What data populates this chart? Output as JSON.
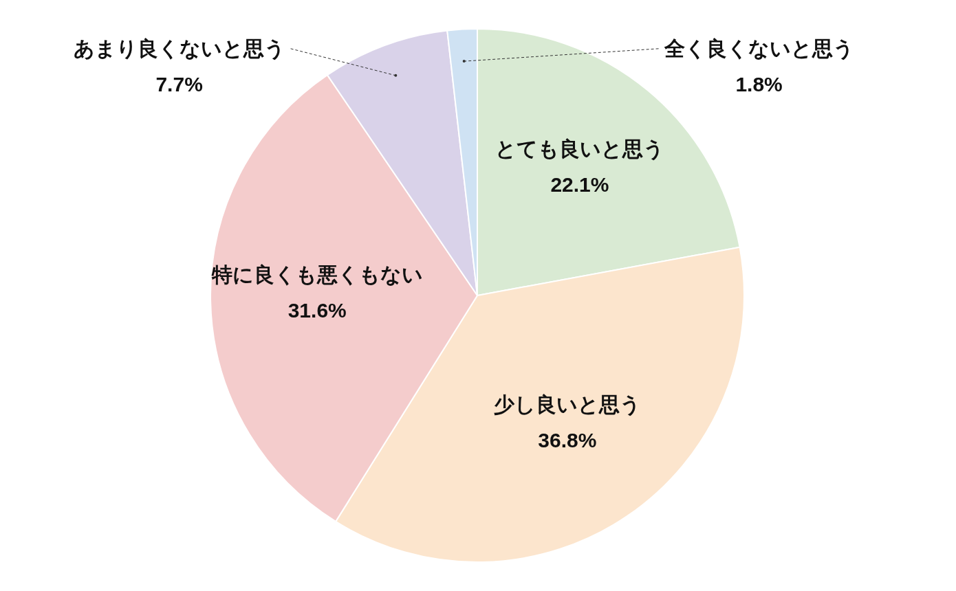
{
  "chart_data": {
    "type": "pie",
    "categories": [
      "とても良いと思う",
      "少し良いと思う",
      "特に良くも悪くもない",
      "あまり良くないと思う",
      "全く良くないと思う"
    ],
    "values": [
      22.1,
      36.8,
      31.6,
      7.7,
      1.8
    ],
    "colors": [
      "#d9ead3",
      "#fce5cd",
      "#f4cccc",
      "#d9d2e9",
      "#cfe2f3"
    ],
    "value_labels": [
      "22.1%",
      "36.8%",
      "31.6%",
      "7.7%",
      "1.8%"
    ]
  }
}
